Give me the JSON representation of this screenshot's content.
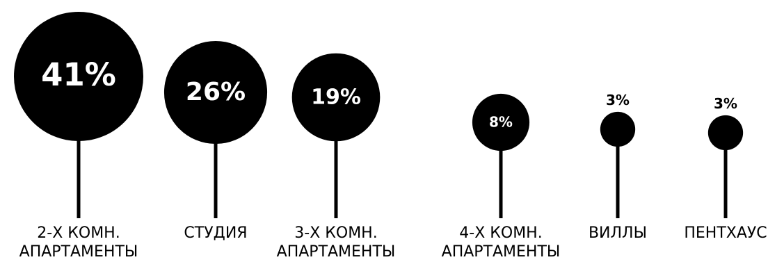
{
  "chart_data": {
    "type": "bubble-lollipop",
    "unit": "%",
    "grid": false,
    "legend": "none",
    "categories": [
      [
        "2-Х КОМН.",
        "АПАРТАМЕНТЫ"
      ],
      [
        "СТУДИЯ"
      ],
      [
        "3-Х КОМН.",
        "АПАРТАМЕНТЫ"
      ],
      [
        "4-Х КОМН.",
        "АПАРТАМЕНТЫ"
      ],
      [
        "ВИЛЛЫ"
      ],
      [
        "ПЕНТХАУС"
      ]
    ],
    "values": [
      41,
      26,
      19,
      8,
      3,
      3
    ],
    "labels": [
      "41%",
      "26%",
      "19%",
      "8%",
      "3%",
      "3%"
    ],
    "colors": {
      "bubble": "#000000",
      "stem": "#000000",
      "inside_text": "#ffffff",
      "outside_text": "#000000"
    }
  }
}
